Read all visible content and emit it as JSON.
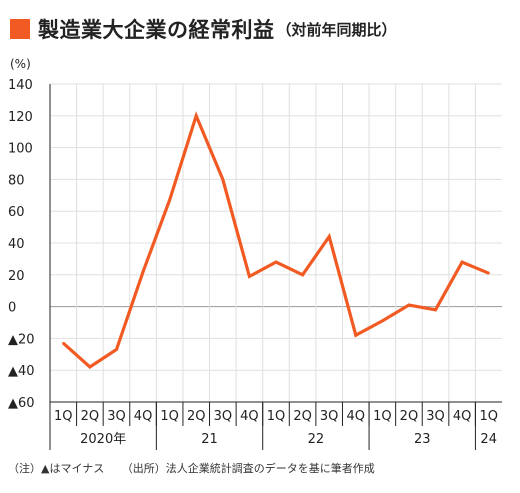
{
  "title": {
    "main": "製造業大企業の経常利益",
    "sub": "（対前年同期比）"
  },
  "footnotes": {
    "note": "（注）▲はマイナス",
    "source": "（出所）法人企業統計調査のデータを基に筆者作成"
  },
  "colors": {
    "accent": "#f15a22",
    "line": "#f15a22",
    "grid": "#e0e0e0",
    "axis": "#222222"
  },
  "chart_data": {
    "type": "line",
    "ylabel": "(%)",
    "ylim": [
      -60,
      140
    ],
    "yticks": [
      {
        "value": 140,
        "label": "140"
      },
      {
        "value": 120,
        "label": "120"
      },
      {
        "value": 100,
        "label": "100"
      },
      {
        "value": 80,
        "label": "80"
      },
      {
        "value": 60,
        "label": "60"
      },
      {
        "value": 40,
        "label": "40"
      },
      {
        "value": 20,
        "label": "20"
      },
      {
        "value": 0,
        "label": "0"
      },
      {
        "value": -20,
        "label": "▲20"
      },
      {
        "value": -40,
        "label": "▲40"
      },
      {
        "value": -60,
        "label": "▲60"
      }
    ],
    "categories": [
      "1Q",
      "2Q",
      "3Q",
      "4Q",
      "1Q",
      "2Q",
      "3Q",
      "4Q",
      "1Q",
      "2Q",
      "3Q",
      "4Q",
      "1Q",
      "2Q",
      "3Q",
      "4Q",
      "1Q"
    ],
    "year_groups": [
      {
        "label": "2020年",
        "start": 0,
        "end": 3
      },
      {
        "label": "21",
        "start": 4,
        "end": 7
      },
      {
        "label": "22",
        "start": 8,
        "end": 11
      },
      {
        "label": "23",
        "start": 12,
        "end": 15
      },
      {
        "label": "24",
        "start": 16,
        "end": 16
      }
    ],
    "series": [
      {
        "values": [
          -23,
          -38,
          -27,
          22,
          67,
          120,
          80,
          19,
          28,
          20,
          44,
          -18,
          -9,
          1,
          -2,
          28,
          21
        ]
      }
    ],
    "grid": true,
    "legend": "none"
  }
}
